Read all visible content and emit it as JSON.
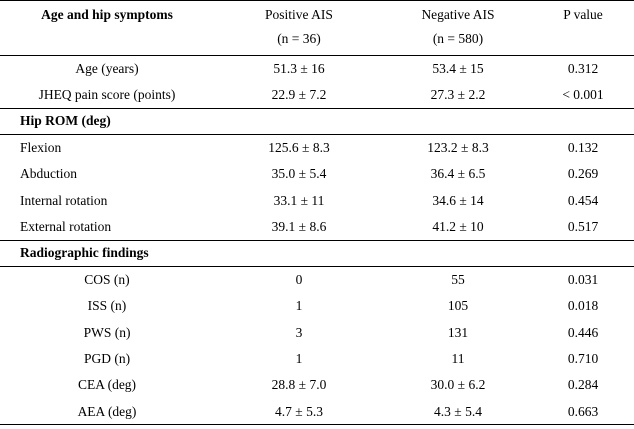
{
  "table": {
    "headers": {
      "col1": "Age and hip symptoms",
      "col2_line1": "Positive AIS",
      "col2_line2": "(n = 36)",
      "col3_line1": "Negative AIS",
      "col3_line2": "(n = 580)",
      "col4": "P value"
    },
    "age_rows": [
      {
        "label": "Age (years)",
        "pos": "51.3 ± 16",
        "neg": "53.4 ± 15",
        "p": "0.312"
      },
      {
        "label": "JHEQ pain score (points)",
        "pos": "22.9 ± 7.2",
        "neg": "27.3 ± 2.2",
        "p": "< 0.001"
      }
    ],
    "rom_title": "Hip ROM (deg)",
    "rom_rows": [
      {
        "label": "Flexion",
        "pos": "125.6 ± 8.3",
        "neg": "123.2 ± 8.3",
        "p": "0.132"
      },
      {
        "label": "Abduction",
        "pos": "35.0 ± 5.4",
        "neg": "36.4 ± 6.5",
        "p": "0.269"
      },
      {
        "label": "Internal rotation",
        "pos": "33.1 ± 11",
        "neg": "34.6 ± 14",
        "p": "0.454"
      },
      {
        "label": "External rotation",
        "pos": "39.1 ± 8.6",
        "neg": "41.2 ± 10",
        "p": "0.517"
      }
    ],
    "radio_title": "Radiographic findings",
    "radio_rows": [
      {
        "label": "COS (n)",
        "pos": "0",
        "neg": "55",
        "p": "0.031"
      },
      {
        "label": "ISS (n)",
        "pos": "1",
        "neg": "105",
        "p": "0.018"
      },
      {
        "label": "PWS (n)",
        "pos": "3",
        "neg": "131",
        "p": "0.446"
      },
      {
        "label": "PGD (n)",
        "pos": "1",
        "neg": "11",
        "p": "0.710"
      },
      {
        "label": "CEA (deg)",
        "pos": "28.8 ± 7.0",
        "neg": "30.0 ± 6.2",
        "p": "0.284"
      },
      {
        "label": "AEA (deg)",
        "pos": "4.7 ± 5.3",
        "neg": "4.3 ± 5.4",
        "p": "0.663"
      }
    ]
  }
}
